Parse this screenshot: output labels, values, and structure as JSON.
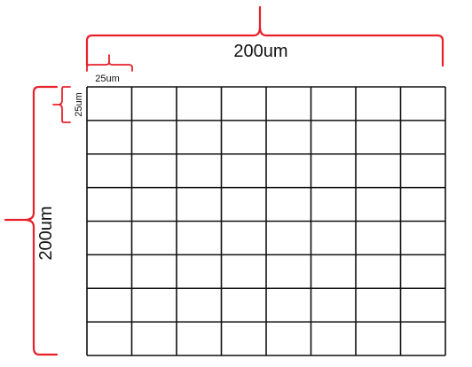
{
  "diagram": {
    "grid": {
      "rows": 8,
      "cols": 8
    },
    "labels": {
      "total_width": "200um",
      "total_height": "200um",
      "cell_width": "25um",
      "cell_height": "25um"
    },
    "colors": {
      "brace": "#e8202a",
      "grid_line": "#111111",
      "text": "#111111"
    }
  }
}
